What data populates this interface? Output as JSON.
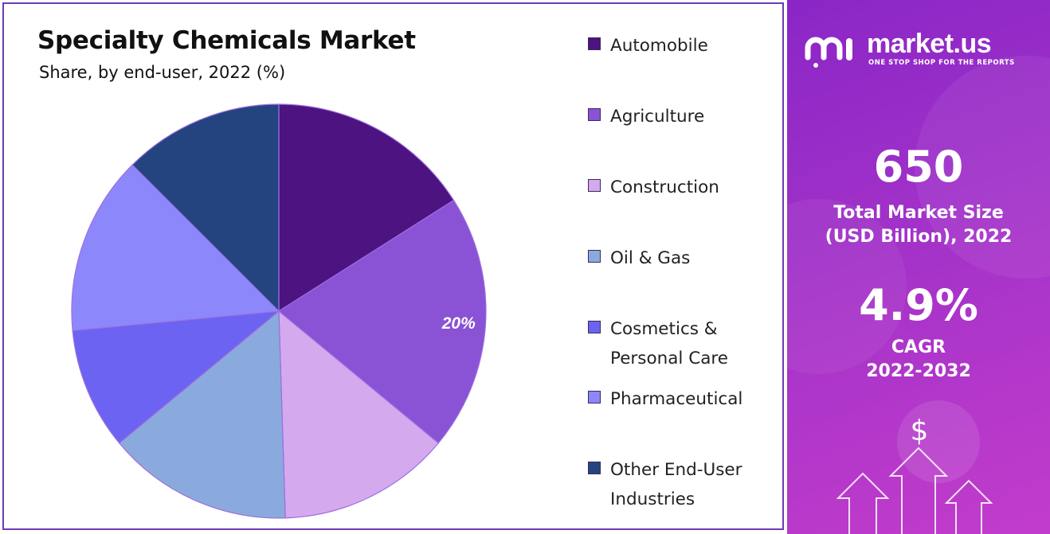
{
  "chart_data": {
    "type": "pie",
    "title": "Specialty Chemicals Market",
    "subtitle": "Share, by end-user, 2022 (%)",
    "categories": [
      "Automobile",
      "Agriculture",
      "Construction",
      "Oil & Gas",
      "Cosmetics & Personal Care",
      "Pharmaceutical",
      "Other End-User Industries"
    ],
    "values": [
      16,
      20,
      13.5,
      14.5,
      9.5,
      14,
      12.5
    ],
    "colors": [
      "#4d1380",
      "#8a52d4",
      "#d5a9ee",
      "#8aaadd",
      "#6c63f2",
      "#8c88fc",
      "#24447f"
    ],
    "data_labels": [
      "",
      "20%",
      "",
      "",
      "",
      "",
      ""
    ],
    "legend_position": "right",
    "start_angle_deg": 0,
    "direction": "clockwise"
  },
  "legend": {
    "items": [
      {
        "lines": [
          "Automobile"
        ]
      },
      {
        "lines": [
          "Agriculture"
        ]
      },
      {
        "lines": [
          "Construction"
        ]
      },
      {
        "lines": [
          "Oil & Gas"
        ]
      },
      {
        "lines": [
          "Cosmetics &",
          "Personal Care"
        ]
      },
      {
        "lines": [
          "Pharmaceutical"
        ]
      },
      {
        "lines": [
          "Other End-User",
          "Industries"
        ]
      }
    ]
  },
  "side_panel": {
    "brand_name": "market.us",
    "brand_tagline": "ONE STOP SHOP FOR THE REPORTS",
    "market_size_value": "650",
    "market_size_label_line1": "Total Market Size",
    "market_size_label_line2": "(USD Billion), 2022",
    "cagr_value": "4.9%",
    "cagr_label_line1": "CAGR",
    "cagr_label_line2": "2022-2032",
    "dollar_symbol": "$",
    "colors": {
      "gradient_start": "#8a26c6",
      "gradient_end": "#c23ccb"
    }
  }
}
